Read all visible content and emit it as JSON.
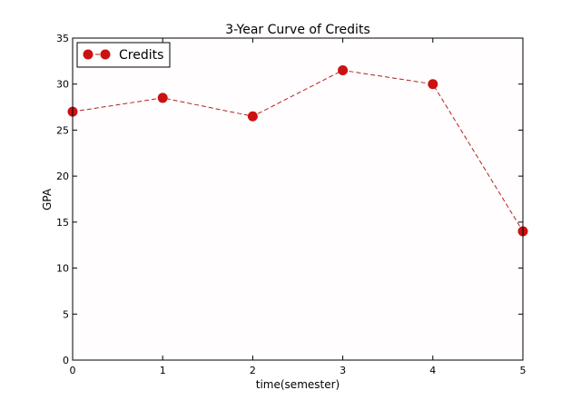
{
  "chart_data": {
    "type": "line",
    "title": "3-Year Curve of Credits",
    "xlabel": "time(semester)",
    "ylabel": "GPA",
    "x": [
      0,
      1,
      2,
      3,
      4,
      5
    ],
    "series": [
      {
        "name": "Credits",
        "values": [
          27,
          28.5,
          26.5,
          31.5,
          30,
          14
        ]
      }
    ],
    "xlim": [
      0,
      5
    ],
    "ylim": [
      0,
      35
    ],
    "xticks": [
      "0",
      "1",
      "2",
      "3",
      "4",
      "5"
    ],
    "yticks": [
      "0",
      "5",
      "10",
      "15",
      "20",
      "25",
      "30",
      "35"
    ],
    "grid": false,
    "legend_position": "top-left",
    "line_style": "dashed",
    "colors": {
      "line": "#b22222",
      "marker": "#cc1111",
      "frame": "#000000"
    }
  }
}
